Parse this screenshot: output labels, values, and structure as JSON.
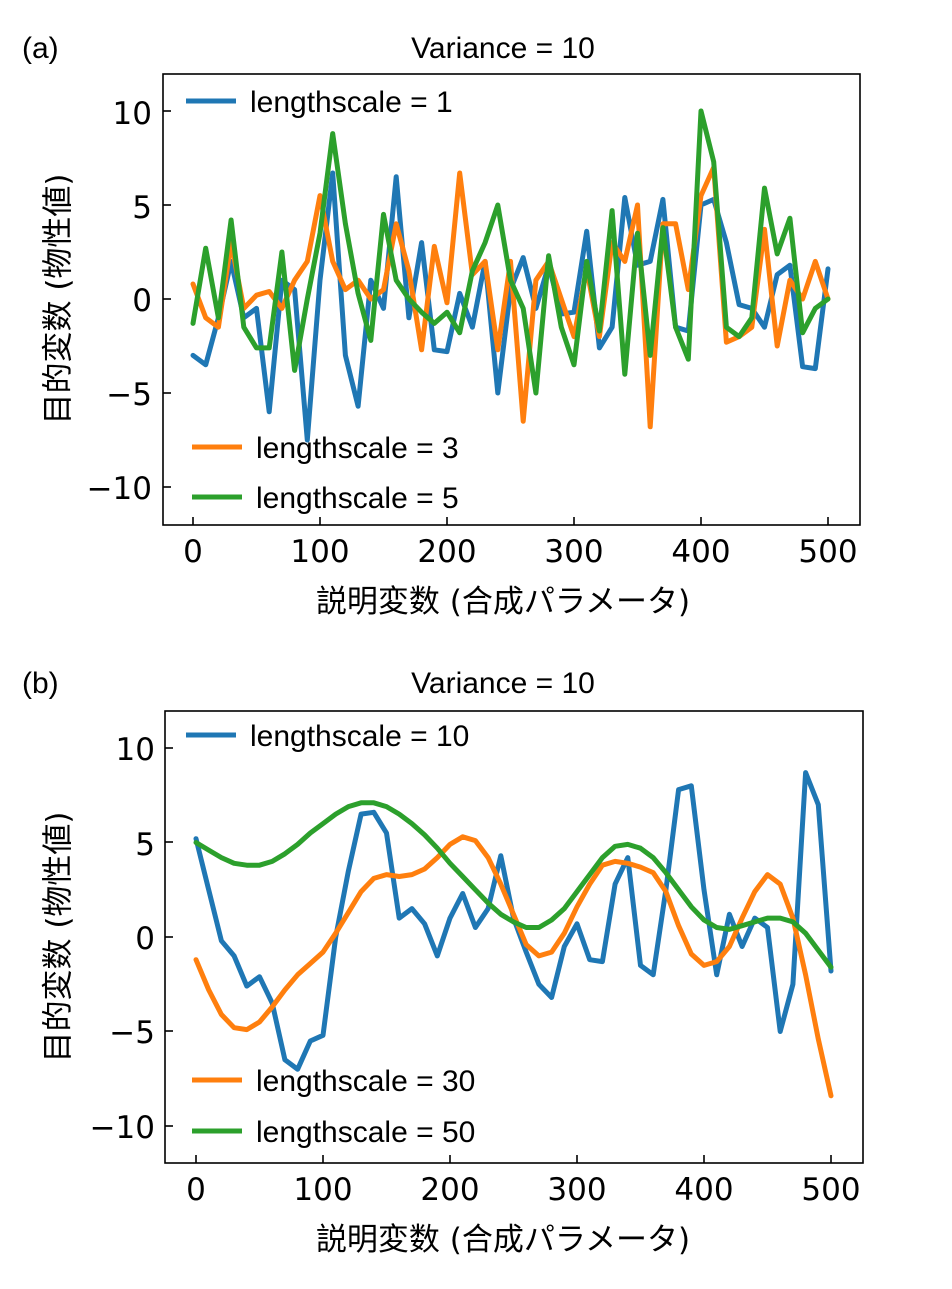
{
  "figure": {
    "panels": [
      {
        "panel_label": "(a)",
        "title": "Variance = 10",
        "xlabel": "説明変数 (合成パラメータ)",
        "ylabel": "目的変数 (物性値)",
        "x_ticks": [
          "0",
          "100",
          "200",
          "300",
          "400",
          "500"
        ],
        "y_ticks": [
          "10",
          "5",
          "0",
          "−5",
          "−10"
        ]
      },
      {
        "panel_label": "(b)",
        "title": "Variance = 10",
        "xlabel": "説明変数 (合成パラメータ)",
        "ylabel": "目的変数 (物性値)",
        "x_ticks": [
          "0",
          "100",
          "200",
          "300",
          "400",
          "500"
        ],
        "y_ticks": [
          "10",
          "5",
          "0",
          "−5",
          "−10"
        ]
      }
    ]
  },
  "chart_data": [
    {
      "type": "line",
      "title": "Variance = 10",
      "xlabel": "説明変数 (合成パラメータ)",
      "ylabel": "目的変数 (物性値)",
      "xlim": [
        -25,
        525
      ],
      "ylim": [
        -12,
        12
      ],
      "x_ticks": [
        0,
        100,
        200,
        300,
        400,
        500
      ],
      "y_ticks": [
        10,
        5,
        0,
        -5,
        -10
      ],
      "x": [
        0,
        10,
        20,
        30,
        40,
        50,
        60,
        70,
        80,
        90,
        100,
        110,
        120,
        130,
        140,
        150,
        160,
        170,
        180,
        190,
        200,
        210,
        220,
        230,
        240,
        250,
        260,
        270,
        280,
        290,
        300,
        310,
        320,
        330,
        340,
        350,
        360,
        370,
        380,
        390,
        400,
        410,
        420,
        430,
        440,
        450,
        460,
        470,
        480,
        490,
        500
      ],
      "legend": {
        "upper": "top-left",
        "lower": "bottom-left"
      },
      "series": [
        {
          "name": "lengthscale = 1",
          "color": "#1f77b4",
          "values": [
            -3.0,
            -3.5,
            -1.0,
            2.0,
            -1.0,
            -0.5,
            -6.0,
            1.0,
            0.5,
            -7.5,
            1.0,
            6.7,
            -3.0,
            -5.7,
            1.0,
            -0.5,
            6.5,
            -1.0,
            3.0,
            -2.7,
            -2.8,
            0.3,
            -1.5,
            2.0,
            -5.0,
            0.5,
            2.2,
            -0.5,
            1.8,
            -0.8,
            -0.7,
            3.6,
            -2.6,
            -1.5,
            5.4,
            1.8,
            2.0,
            5.3,
            -1.5,
            -1.7,
            5.0,
            5.3,
            3.0,
            -0.3,
            -0.5,
            -1.5,
            1.3,
            1.8,
            -3.6,
            -3.7,
            1.6
          ]
        },
        {
          "name": "lengthscale = 3",
          "color": "#ff7f0e",
          "values": [
            0.8,
            -1.0,
            -1.5,
            3.0,
            -0.5,
            0.2,
            0.4,
            -0.5,
            1.0,
            2.0,
            5.5,
            2.0,
            0.5,
            1.0,
            0.0,
            0.5,
            4.0,
            1.5,
            -2.7,
            2.8,
            -0.2,
            6.7,
            1.3,
            2.0,
            -2.7,
            2.0,
            -6.5,
            1.0,
            2.0,
            0.0,
            -2.0,
            1.6,
            -2.0,
            3.0,
            2.0,
            5.0,
            -6.8,
            4.0,
            4.0,
            0.5,
            5.5,
            7.0,
            -2.3,
            -2.0,
            -1.5,
            3.7,
            -2.5,
            1.0,
            0.0,
            2.0,
            0.0
          ]
        },
        {
          "name": "lengthscale = 5",
          "color": "#2ca02c",
          "values": [
            -1.3,
            2.7,
            -1.0,
            4.2,
            -1.5,
            -2.6,
            -2.6,
            2.5,
            -3.8,
            0.0,
            3.5,
            8.8,
            4.0,
            0.3,
            -2.2,
            4.5,
            1.0,
            0.0,
            -0.7,
            -1.3,
            -0.7,
            -1.8,
            1.5,
            3.0,
            5.0,
            1.0,
            -0.5,
            -5.0,
            2.3,
            -1.5,
            -3.5,
            2.0,
            -1.7,
            4.7,
            -4.0,
            3.5,
            -3.0,
            3.8,
            -1.5,
            -3.2,
            10.0,
            7.3,
            -1.5,
            -2.0,
            -1.0,
            5.9,
            2.4,
            4.3,
            -1.8,
            -0.5,
            0.0
          ]
        }
      ]
    },
    {
      "type": "line",
      "title": "Variance = 10",
      "xlabel": "説明変数 (合成パラメータ)",
      "ylabel": "目的変数 (物性値)",
      "xlim": [
        -25,
        525
      ],
      "ylim": [
        -12,
        12
      ],
      "x_ticks": [
        0,
        100,
        200,
        300,
        400,
        500
      ],
      "y_ticks": [
        10,
        5,
        0,
        -5,
        -10
      ],
      "x": [
        0,
        10,
        20,
        30,
        40,
        50,
        60,
        70,
        80,
        90,
        100,
        110,
        120,
        130,
        140,
        150,
        160,
        170,
        180,
        190,
        200,
        210,
        220,
        230,
        240,
        250,
        260,
        270,
        280,
        290,
        300,
        310,
        320,
        330,
        340,
        350,
        360,
        370,
        380,
        390,
        400,
        410,
        420,
        430,
        440,
        450,
        460,
        470,
        480,
        490,
        500
      ],
      "legend": {
        "upper": "top-left",
        "lower": "bottom-left"
      },
      "series": [
        {
          "name": "lengthscale = 10",
          "color": "#1f77b4",
          "values": [
            5.2,
            2.5,
            -0.2,
            -1.0,
            -2.6,
            -2.1,
            -3.5,
            -6.5,
            -7.0,
            -5.5,
            -5.2,
            0.0,
            3.5,
            6.5,
            6.6,
            5.5,
            1.0,
            1.5,
            0.7,
            -1.0,
            1.0,
            2.3,
            0.5,
            1.5,
            4.3,
            1.0,
            -0.8,
            -2.5,
            -3.2,
            -0.5,
            0.7,
            -1.2,
            -1.3,
            2.8,
            4.2,
            -1.5,
            -2.0,
            2.5,
            7.8,
            8.0,
            2.5,
            -2.0,
            1.2,
            -0.5,
            1.0,
            0.5,
            -5.0,
            -2.5,
            8.7,
            7.0,
            -1.8
          ]
        },
        {
          "name": "lengthscale = 30",
          "color": "#ff7f0e",
          "values": [
            -1.2,
            -2.8,
            -4.1,
            -4.8,
            -4.9,
            -4.5,
            -3.7,
            -2.8,
            -2.0,
            -1.4,
            -0.8,
            0.2,
            1.3,
            2.4,
            3.1,
            3.3,
            3.2,
            3.3,
            3.6,
            4.2,
            4.9,
            5.3,
            5.1,
            4.2,
            2.8,
            1.2,
            -0.4,
            -1.0,
            -0.8,
            0.2,
            1.6,
            2.8,
            3.8,
            4.0,
            3.9,
            3.7,
            3.4,
            2.4,
            0.6,
            -0.9,
            -1.5,
            -1.3,
            -0.5,
            1.0,
            2.4,
            3.3,
            2.8,
            1.0,
            -2.0,
            -5.4,
            -8.4
          ]
        },
        {
          "name": "lengthscale = 50",
          "color": "#2ca02c",
          "values": [
            5.0,
            4.6,
            4.2,
            3.9,
            3.8,
            3.8,
            4.0,
            4.4,
            4.9,
            5.5,
            6.0,
            6.5,
            6.9,
            7.1,
            7.1,
            6.9,
            6.5,
            6.0,
            5.4,
            4.7,
            3.9,
            3.2,
            2.5,
            1.8,
            1.2,
            0.8,
            0.5,
            0.5,
            0.9,
            1.5,
            2.4,
            3.3,
            4.2,
            4.8,
            4.9,
            4.7,
            4.2,
            3.4,
            2.5,
            1.6,
            0.9,
            0.5,
            0.4,
            0.6,
            0.8,
            1.0,
            1.0,
            0.8,
            0.2,
            -0.7,
            -1.6
          ]
        }
      ]
    }
  ]
}
